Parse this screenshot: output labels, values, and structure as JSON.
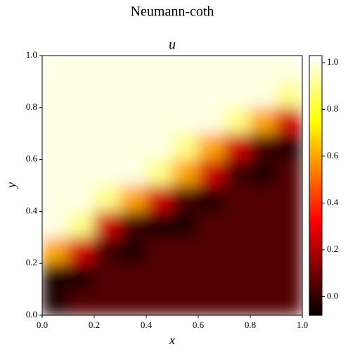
{
  "chart_data": {
    "type": "heatmap",
    "title": "Neumann-coth",
    "subtitle": "u",
    "xlabel": "x",
    "ylabel": "y",
    "colormap": "hot",
    "x": [
      0.05,
      0.15,
      0.25,
      0.35,
      0.45,
      0.55,
      0.65,
      0.75,
      0.85,
      0.95
    ],
    "y": [
      0.05,
      0.15,
      0.25,
      0.35,
      0.45,
      0.55,
      0.65,
      0.75,
      0.85,
      0.95
    ],
    "values": [
      [
        -0.03,
        0.05,
        0.05,
        0.05,
        0.05,
        0.05,
        0.05,
        0.05,
        0.05,
        0.05
      ],
      [
        -0.03,
        -0.03,
        0.05,
        0.05,
        0.05,
        0.05,
        0.05,
        0.05,
        0.05,
        0.05
      ],
      [
        0.6,
        0.25,
        0.02,
        -0.03,
        0.05,
        0.05,
        0.05,
        0.05,
        0.05,
        0.05
      ],
      [
        1,
        0.9,
        0.25,
        0.02,
        -0.03,
        -0.03,
        0.05,
        0.05,
        0.05,
        0.05
      ],
      [
        1,
        1,
        0.9,
        0.6,
        0.25,
        0.02,
        -0.03,
        0.05,
        0.05,
        0.05
      ],
      [
        1,
        1,
        1,
        1,
        0.9,
        0.6,
        0.25,
        0.02,
        -0.03,
        0.05
      ],
      [
        1,
        1,
        1,
        1,
        1,
        0.9,
        0.6,
        0.25,
        0.02,
        -0.03
      ],
      [
        1,
        1,
        1,
        1,
        1,
        1,
        1,
        0.9,
        0.6,
        0.25
      ],
      [
        1,
        1,
        1,
        1,
        1,
        1,
        1,
        1,
        1,
        0.9
      ],
      [
        1,
        1,
        1,
        1,
        1,
        1,
        1,
        1,
        1,
        1
      ]
    ],
    "xlim": [
      0,
      1
    ],
    "ylim": [
      0,
      1
    ],
    "xticks": [
      {
        "value": 0,
        "label": "0.0"
      },
      0.2,
      0.4,
      0.6,
      0.8,
      {
        "value": 1,
        "label": "1.0"
      }
    ],
    "yticks": [
      {
        "value": 0,
        "label": "0.0"
      },
      0.2,
      0.4,
      0.6,
      0.8,
      {
        "value": 1,
        "label": "1.0"
      }
    ],
    "clim": [
      -0.08,
      1.03
    ],
    "cticks": [
      {
        "value": 0,
        "label": "0.0"
      },
      0.2,
      0.4,
      0.6,
      0.8,
      {
        "value": 1,
        "label": "1.0"
      }
    ]
  }
}
